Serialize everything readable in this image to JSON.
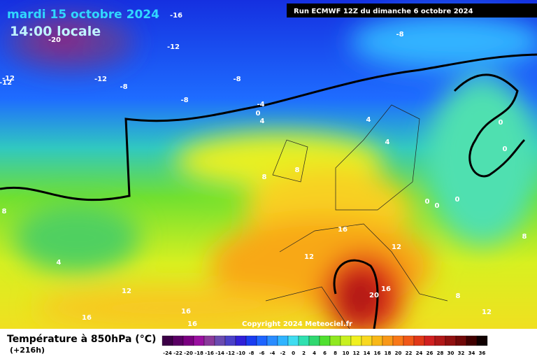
{
  "header": {
    "date": "mardi 15 octobre 2024",
    "time": "14:00 locale",
    "run": "Run ECMWF 12Z du dimanche 6 octobre 2024"
  },
  "map_labels": [
    "-16",
    "-20",
    "-8",
    "-12",
    "-12",
    "-12",
    "-12",
    "-8",
    "-8",
    "-8",
    "-4",
    "0",
    "4",
    "4",
    "4",
    "0",
    "0",
    "8",
    "8",
    "0",
    "0",
    "0",
    "8",
    "4",
    "16",
    "12",
    "12",
    "8",
    "12",
    "16",
    "16",
    "16",
    "20",
    "16",
    "8",
    "12"
  ],
  "footer": {
    "title": "Température à 850hPa (°C)",
    "lead": "(+216h)",
    "copyright": "Copyright 2024 Meteociel.fr"
  },
  "scale": {
    "labels": [
      -24,
      -22,
      -20,
      -18,
      -16,
      -14,
      -12,
      -10,
      -8,
      -6,
      -4,
      -2,
      0,
      2,
      4,
      6,
      8,
      10,
      12,
      14,
      16,
      18,
      20,
      22,
      24,
      26,
      28,
      30,
      32,
      34,
      36
    ],
    "colors": [
      "#3c0046",
      "#5a0064",
      "#7a0080",
      "#9a10a0",
      "#8a3a9a",
      "#6a4ab0",
      "#4a40c8",
      "#3020d8",
      "#1a3cf0",
      "#1e64ff",
      "#2a8cff",
      "#30b4ff",
      "#40dcf0",
      "#30e0b0",
      "#30d870",
      "#50e030",
      "#90e820",
      "#c8f020",
      "#f0f020",
      "#f8d820",
      "#f8b818",
      "#f89818",
      "#f87818",
      "#f05818",
      "#e03818",
      "#d02020",
      "#b01818",
      "#901010",
      "#700808",
      "#400000",
      "#100000"
    ]
  }
}
